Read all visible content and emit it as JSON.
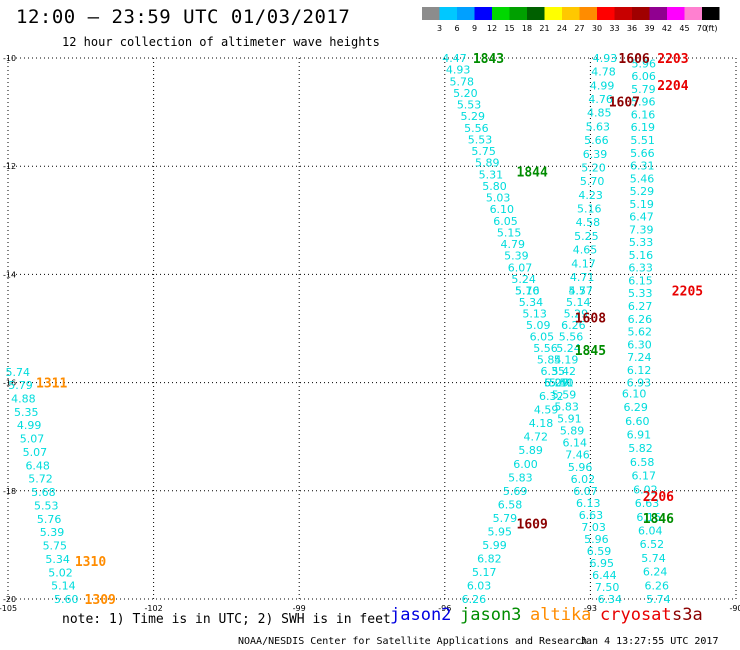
{
  "header": {
    "title": "12:00 – 23:59 UTC 01/03/2017",
    "subtitle": "12 hour collection of altimeter wave heights"
  },
  "colorbar": {
    "unit": "(ft)",
    "labels": [
      "3",
      "6",
      "9",
      "12",
      "15",
      "18",
      "21",
      "24",
      "27",
      "30",
      "33",
      "36",
      "39",
      "42",
      "45",
      "70"
    ],
    "colors": [
      "#8c8c8c",
      "#00c8ff",
      "#00a0ff",
      "#0000ff",
      "#00d800",
      "#00a000",
      "#006000",
      "#ffff00",
      "#ffc800",
      "#ff8c00",
      "#ff0000",
      "#c80000",
      "#a00000",
      "#900090",
      "#ff00ff",
      "#ff80d0",
      "#000000"
    ]
  },
  "axes": {
    "x_ticks": [
      "-105",
      "-102",
      "-99",
      "-96",
      "-93",
      "-90"
    ],
    "y_ticks": [
      "-10",
      "-12",
      "-14",
      "-16",
      "-18",
      "-20"
    ],
    "x_range": [
      -105,
      -90
    ],
    "y_range": [
      -20,
      -10
    ]
  },
  "wave_color": "#00dcdc",
  "tracks": [
    {
      "lon0": -104.8,
      "lat0": -15.8,
      "lon1": -103.8,
      "lat1": -20.0,
      "values": [
        "5.74",
        "5.79",
        "4.88",
        "5.35",
        "4.99",
        "5.07",
        "5.07",
        "6.48",
        "5.72",
        "5.68",
        "5.53",
        "5.76",
        "5.39",
        "5.75",
        "5.34",
        "5.02",
        "5.14",
        "5.60"
      ]
    },
    {
      "lon0": -95.8,
      "lat0": -10.0,
      "lon1": -94.3,
      "lat1": -14.3,
      "values": [
        "4.47",
        "4.93",
        "5.78",
        "5.20",
        "5.53",
        "5.29",
        "5.56",
        "5.53",
        "5.75",
        "5.89",
        "5.31",
        "5.80",
        "5.03",
        "6.10",
        "6.05",
        "5.15",
        "4.79",
        "5.39",
        "6.07",
        "5.24",
        "5.70"
      ]
    },
    {
      "lon0": -94.3,
      "lat0": -14.3,
      "lon1": -93.7,
      "lat1": -16.0,
      "values": [
        "5.16",
        "5.34",
        "5.13",
        "5.09",
        "6.05",
        "5.56",
        "5.84",
        "6.35",
        "5.29"
      ]
    },
    {
      "lon0": -93.7,
      "lat0": -16.0,
      "lon1": -95.4,
      "lat1": -20.0,
      "values": [
        "6.07",
        "6.32",
        "4.59",
        "4.18",
        "4.72",
        "5.89",
        "6.00",
        "5.83",
        "5.69",
        "6.58",
        "5.79",
        "5.95",
        "5.99",
        "6.82",
        "5.17",
        "6.03",
        "6.26"
      ]
    },
    {
      "lon0": -92.7,
      "lat0": -10.0,
      "lon1": -93.2,
      "lat1": -14.3,
      "values": [
        "4.93",
        "4.78",
        "4.99",
        "4.76",
        "4.85",
        "5.63",
        "5.66",
        "6.39",
        "5.20",
        "5.70",
        "4.23",
        "5.16",
        "4.58",
        "5.25",
        "4.65",
        "4.17",
        "4.71",
        "5.77"
      ]
    },
    {
      "lon0": -93.2,
      "lat0": -14.3,
      "lon1": -93.6,
      "lat1": -16.0,
      "values": [
        "4.57",
        "5.14",
        "5.29",
        "6.26",
        "5.56",
        "5.24",
        "5.19",
        "5.42",
        "5.40"
      ]
    },
    {
      "lon0": -93.6,
      "lat0": -16.0,
      "lon1": -92.6,
      "lat1": -20.0,
      "values": [
        "5.51",
        "5.59",
        "5.83",
        "5.91",
        "5.89",
        "6.14",
        "7.46",
        "5.96",
        "6.02",
        "6.07",
        "6.13",
        "6.63",
        "7.03",
        "5.96",
        "6.59",
        "6.95",
        "6.44",
        "7.50",
        "6.34"
      ]
    },
    {
      "lon0": -91.9,
      "lat0": -10.1,
      "lon1": -92.0,
      "lat1": -16.0,
      "values": [
        "5.96",
        "6.06",
        "5.79",
        "5.96",
        "6.16",
        "6.19",
        "5.51",
        "5.66",
        "6.31",
        "5.46",
        "5.29",
        "5.19",
        "6.47",
        "7.39",
        "5.33",
        "5.16",
        "6.33",
        "6.15",
        "5.33",
        "6.27",
        "6.26",
        "5.62",
        "6.30",
        "7.24",
        "6.12",
        "6.93"
      ]
    },
    {
      "lon0": -92.1,
      "lat0": -16.2,
      "lon1": -91.6,
      "lat1": -20.0,
      "values": [
        "6.10",
        "6.29",
        "6.60",
        "6.91",
        "5.82",
        "6.58",
        "6.17",
        "6.02",
        "6.63",
        "6.16",
        "6.04",
        "6.52",
        "5.74",
        "6.24",
        "6.26",
        "5.74"
      ]
    }
  ],
  "pass_labels": [
    {
      "text": "1843",
      "lon": -95.1,
      "lat": -10.0,
      "color": "#008c00"
    },
    {
      "text": "1844",
      "lon": -94.2,
      "lat": -12.1,
      "color": "#008c00"
    },
    {
      "text": "1845",
      "lon": -93.0,
      "lat": -15.4,
      "color": "#008c00"
    },
    {
      "text": "1846",
      "lon": -91.6,
      "lat": -18.5,
      "color": "#008c00"
    },
    {
      "text": "1606",
      "lon": -92.1,
      "lat": -10.0,
      "color": "#8b0000"
    },
    {
      "text": "1607",
      "lon": -92.3,
      "lat": -10.8,
      "color": "#8b0000"
    },
    {
      "text": "1608",
      "lon": -93.0,
      "lat": -14.8,
      "color": "#8b0000"
    },
    {
      "text": "1609",
      "lon": -94.2,
      "lat": -18.6,
      "color": "#8b0000"
    },
    {
      "text": "2203",
      "lon": -91.3,
      "lat": -10.0,
      "color": "#e80000"
    },
    {
      "text": "2204",
      "lon": -91.3,
      "lat": -10.5,
      "color": "#e80000"
    },
    {
      "text": "2205",
      "lon": -91.0,
      "lat": -14.3,
      "color": "#e80000"
    },
    {
      "text": "2206",
      "lon": -91.6,
      "lat": -18.1,
      "color": "#e80000"
    },
    {
      "text": "1311",
      "lon": -104.1,
      "lat": -16.0,
      "color": "#ff8c00"
    },
    {
      "text": "1310",
      "lon": -103.3,
      "lat": -19.3,
      "color": "#ff8c00"
    },
    {
      "text": "1309",
      "lon": -103.1,
      "lat": -20.0,
      "color": "#ff8c00"
    }
  ],
  "footer": {
    "note": "note: 1) Time is in UTC; 2) SWH is in feet",
    "satellites": [
      {
        "name": "jason2",
        "color": "#0000e0"
      },
      {
        "name": "jason3",
        "color": "#008c00"
      },
      {
        "name": "altika",
        "color": "#ff8c00"
      },
      {
        "name": "cryosat",
        "color": "#e80000"
      },
      {
        "name": "s3a",
        "color": "#8b0000"
      }
    ],
    "credit": "NOAA/NESDIS Center for Satellite Applications and Research",
    "generated": "Jan  4 13:27:55 UTC 2017"
  }
}
